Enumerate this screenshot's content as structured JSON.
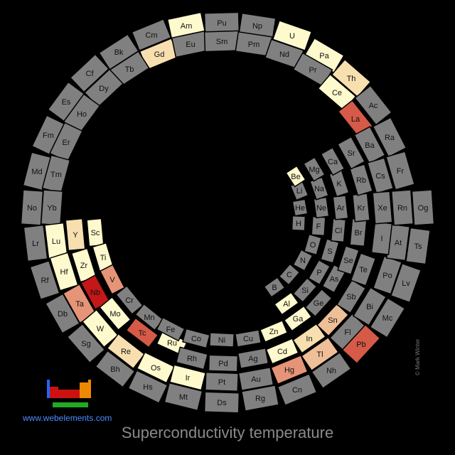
{
  "title": "Superconductivity temperature",
  "site": "www.webelements.com",
  "credit": "© Mark Winter",
  "colors": {
    "background": "#000000",
    "no_data": "#808080",
    "level_1": "#fffacd",
    "level_2": "#f7dfb0",
    "level_3": "#efbf98",
    "level_4": "#e59478",
    "level_5": "#d65a48",
    "level_6": "#c41818",
    "text": "#111111",
    "title": "#8a8a8a",
    "link": "#4d8cff"
  },
  "cells": [
    {
      "symbol": "Am",
      "level": 1
    },
    {
      "symbol": "Pu",
      "level": 0
    },
    {
      "symbol": "Np",
      "level": 0
    },
    {
      "symbol": "U",
      "level": 1
    },
    {
      "symbol": "Pa",
      "level": 1
    },
    {
      "symbol": "Th",
      "level": 2
    },
    {
      "symbol": "Ac",
      "level": 0
    },
    {
      "symbol": "Ra",
      "level": 0
    },
    {
      "symbol": "Fr",
      "level": 0
    },
    {
      "symbol": "Cm",
      "level": 0
    },
    {
      "symbol": "Gd",
      "level": 2
    },
    {
      "symbol": "Eu",
      "level": 0
    },
    {
      "symbol": "Sm",
      "level": 0
    },
    {
      "symbol": "Pm",
      "level": 0
    },
    {
      "symbol": "Nd",
      "level": 0
    },
    {
      "symbol": "Pr",
      "level": 0
    },
    {
      "symbol": "Ce",
      "level": 1
    },
    {
      "symbol": "La",
      "level": 5
    },
    {
      "symbol": "Ba",
      "level": 0
    },
    {
      "symbol": "Cs",
      "level": 0
    },
    {
      "symbol": "Bk",
      "level": 0
    },
    {
      "symbol": "Tb",
      "level": 0
    },
    {
      "symbol": "Cf",
      "level": 0
    },
    {
      "symbol": "Dy",
      "level": 0
    },
    {
      "symbol": "Es",
      "level": 0
    },
    {
      "symbol": "Ho",
      "level": 0
    },
    {
      "symbol": "Fm",
      "level": 0
    },
    {
      "symbol": "Er",
      "level": 0
    },
    {
      "symbol": "Md",
      "level": 0
    },
    {
      "symbol": "Tm",
      "level": 0
    },
    {
      "symbol": "No",
      "level": 0
    },
    {
      "symbol": "Yb",
      "level": 0
    },
    {
      "symbol": "Lr",
      "level": 0
    },
    {
      "symbol": "Lu",
      "level": 1
    },
    {
      "symbol": "Rf",
      "level": 0
    },
    {
      "symbol": "Hf",
      "level": 1
    },
    {
      "symbol": "Db",
      "level": 0
    },
    {
      "symbol": "Ta",
      "level": 4
    },
    {
      "symbol": "Sg",
      "level": 0
    },
    {
      "symbol": "W",
      "level": 1
    },
    {
      "symbol": "Bh",
      "level": 0
    },
    {
      "symbol": "Re",
      "level": 2
    },
    {
      "symbol": "Hs",
      "level": 0
    },
    {
      "symbol": "Os",
      "level": 1
    },
    {
      "symbol": "Mt",
      "level": 0
    },
    {
      "symbol": "Ir",
      "level": 1
    },
    {
      "symbol": "Ds",
      "level": 0
    },
    {
      "symbol": "Pt",
      "level": 0
    },
    {
      "symbol": "Rg",
      "level": 0
    },
    {
      "symbol": "Au",
      "level": 0
    },
    {
      "symbol": "Cn",
      "level": 0
    },
    {
      "symbol": "Hg",
      "level": 4
    },
    {
      "symbol": "Nh",
      "level": 0
    },
    {
      "symbol": "Tl",
      "level": 3
    },
    {
      "symbol": "Fl",
      "level": 0
    },
    {
      "symbol": "Pb",
      "level": 5
    },
    {
      "symbol": "Mc",
      "level": 0
    },
    {
      "symbol": "Bi",
      "level": 0
    },
    {
      "symbol": "Lv",
      "level": 0
    },
    {
      "symbol": "Po",
      "level": 0
    },
    {
      "symbol": "Ts",
      "level": 0
    },
    {
      "symbol": "At",
      "level": 0
    },
    {
      "symbol": "Og",
      "level": 0
    },
    {
      "symbol": "Rn",
      "level": 0
    },
    {
      "symbol": "Y",
      "level": 2
    },
    {
      "symbol": "Sc",
      "level": 1
    },
    {
      "symbol": "Zr",
      "level": 1
    },
    {
      "symbol": "Ti",
      "level": 1
    },
    {
      "symbol": "Nb",
      "level": 6
    },
    {
      "symbol": "V",
      "level": 4
    },
    {
      "symbol": "Mo",
      "level": 1
    },
    {
      "symbol": "Cr",
      "level": 0
    },
    {
      "symbol": "Tc",
      "level": 5
    },
    {
      "symbol": "Mn",
      "level": 0
    },
    {
      "symbol": "Ru",
      "level": 1
    },
    {
      "symbol": "Fe",
      "level": 0
    },
    {
      "symbol": "Rh",
      "level": 0
    },
    {
      "symbol": "Co",
      "level": 0
    },
    {
      "symbol": "Pd",
      "level": 0
    },
    {
      "symbol": "Ni",
      "level": 0
    },
    {
      "symbol": "Ag",
      "level": 0
    },
    {
      "symbol": "Cu",
      "level": 0
    },
    {
      "symbol": "Cd",
      "level": 1
    },
    {
      "symbol": "Zn",
      "level": 1
    },
    {
      "symbol": "In",
      "level": 2
    },
    {
      "symbol": "Ga",
      "level": 1
    },
    {
      "symbol": "Sn",
      "level": 3
    },
    {
      "symbol": "Ge",
      "level": 0
    },
    {
      "symbol": "Sb",
      "level": 0
    },
    {
      "symbol": "As",
      "level": 0
    },
    {
      "symbol": "Te",
      "level": 0
    },
    {
      "symbol": "Se",
      "level": 0
    },
    {
      "symbol": "I",
      "level": 0
    },
    {
      "symbol": "Br",
      "level": 0
    },
    {
      "symbol": "Xe",
      "level": 0
    },
    {
      "symbol": "Kr",
      "level": 0
    },
    {
      "symbol": "Rb",
      "level": 0
    },
    {
      "symbol": "Sr",
      "level": 0
    },
    {
      "symbol": "K",
      "level": 0
    },
    {
      "symbol": "Ca",
      "level": 0
    },
    {
      "symbol": "Al",
      "level": 1
    },
    {
      "symbol": "Si",
      "level": 0
    },
    {
      "symbol": "P",
      "level": 0
    },
    {
      "symbol": "S",
      "level": 0
    },
    {
      "symbol": "Cl",
      "level": 0
    },
    {
      "symbol": "Ar",
      "level": 0
    },
    {
      "symbol": "B",
      "level": 0
    },
    {
      "symbol": "C",
      "level": 0
    },
    {
      "symbol": "N",
      "level": 0
    },
    {
      "symbol": "O",
      "level": 0
    },
    {
      "symbol": "F",
      "level": 0
    },
    {
      "symbol": "Ne",
      "level": 0
    },
    {
      "symbol": "Na",
      "level": 0
    },
    {
      "symbol": "Mg",
      "level": 0
    },
    {
      "symbol": "Li",
      "level": 0
    },
    {
      "symbol": "Be",
      "level": 1
    },
    {
      "symbol": "He",
      "level": 0
    },
    {
      "symbol": "H",
      "level": 0
    }
  ]
}
